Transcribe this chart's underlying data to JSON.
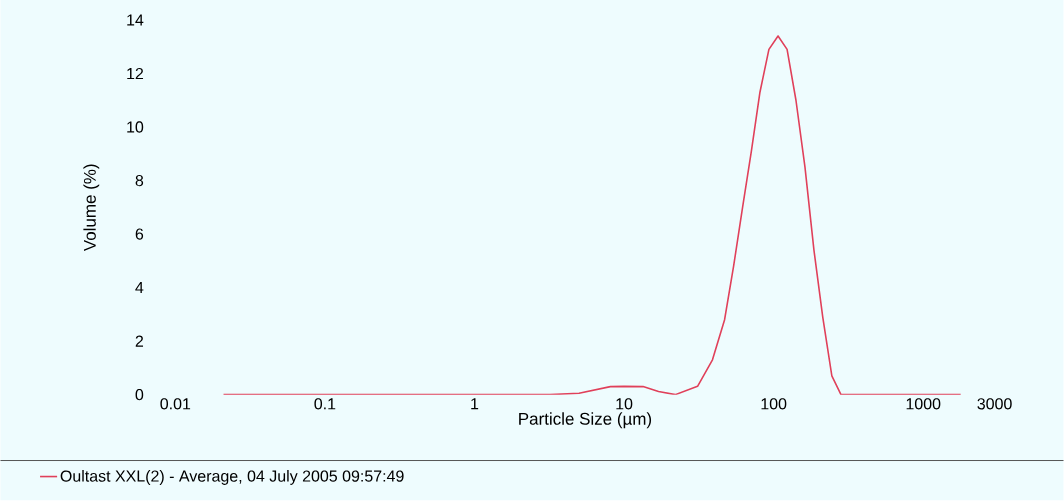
{
  "chart_data": {
    "type": "line",
    "xlabel": "Particle Size (µm)",
    "ylabel": "Volume (%)",
    "log": "x",
    "xlim": [
      0.01,
      3000
    ],
    "ylim": [
      0,
      14
    ],
    "xticks": [
      0.01,
      0.1,
      1,
      10,
      100,
      1000,
      3000
    ],
    "yticks": [
      0,
      2,
      4,
      6,
      8,
      10,
      12,
      14
    ],
    "x": [
      0.021,
      0.1,
      1,
      3.2,
      5,
      8.1,
      10,
      13.4,
      17,
      22,
      31,
      39,
      47,
      54,
      62,
      71,
      81,
      93,
      107,
      123,
      141,
      162,
      186,
      213,
      245,
      282,
      500,
      1780
    ],
    "series": [
      {
        "name": "Oultast XXL(2) - Average, 04 July 2005 09:57:49",
        "color": "#e0405a",
        "values": [
          0,
          0,
          0,
          0,
          0.05,
          0.3,
          0.31,
          0.3,
          0.12,
          0,
          0.31,
          1.3,
          2.8,
          4.8,
          7.0,
          9.1,
          11.3,
          12.9,
          13.4,
          12.9,
          11.0,
          8.5,
          5.4,
          2.9,
          0.7,
          0,
          0,
          0
        ]
      }
    ],
    "legend": "bottom",
    "grid": false,
    "marker": "none",
    "line_style": "solid"
  }
}
